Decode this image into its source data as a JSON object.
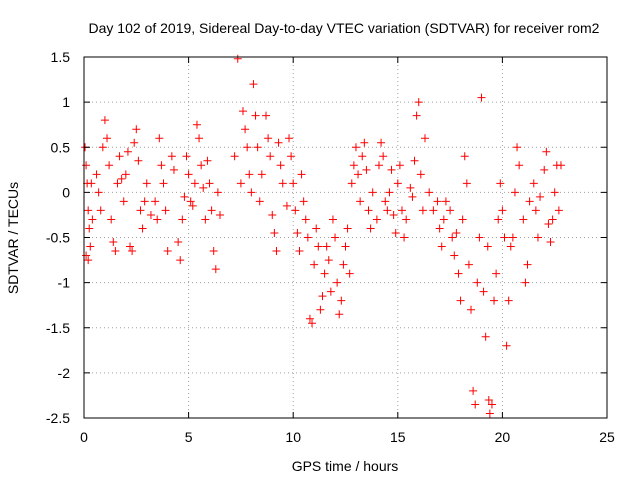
{
  "chart_data": {
    "type": "scatter",
    "title": "Day 102 of 2019, Sidereal Day-to-day VTEC variation (SDTVAR) for receiver rom2",
    "xlabel": "GPS time / hours",
    "ylabel": "SDTVAR / TECUs",
    "xlim": [
      0,
      25
    ],
    "ylim": [
      -2.5,
      1.5
    ],
    "xticks": [
      "0",
      "5",
      "10",
      "15",
      "20",
      "25"
    ],
    "yticks": [
      "1.5",
      "1",
      "0.5",
      "0",
      "-0.5",
      "-1",
      "-1.5",
      "-2",
      "-2.5"
    ],
    "marker": "+",
    "color": "#ff0000",
    "grid": true,
    "series": [
      {
        "name": "SDTVAR",
        "points": [
          [
            0.05,
            0.5
          ],
          [
            0.1,
            0.3
          ],
          [
            0.15,
            0.1
          ],
          [
            0.2,
            -0.2
          ],
          [
            0.25,
            -0.4
          ],
          [
            0.1,
            -0.7
          ],
          [
            0.2,
            -0.75
          ],
          [
            0.3,
            -0.6
          ],
          [
            0.35,
            0.1
          ],
          [
            0.4,
            -0.3
          ],
          [
            0.6,
            0.2
          ],
          [
            0.7,
            0.0
          ],
          [
            0.8,
            -0.2
          ],
          [
            0.9,
            0.5
          ],
          [
            1.0,
            0.8
          ],
          [
            1.1,
            0.6
          ],
          [
            1.2,
            0.3
          ],
          [
            1.3,
            -0.3
          ],
          [
            1.4,
            -0.55
          ],
          [
            1.5,
            -0.65
          ],
          [
            1.6,
            0.1
          ],
          [
            1.7,
            0.4
          ],
          [
            1.8,
            0.15
          ],
          [
            1.9,
            -0.1
          ],
          [
            2.0,
            0.2
          ],
          [
            2.1,
            0.45
          ],
          [
            2.2,
            -0.6
          ],
          [
            2.3,
            -0.65
          ],
          [
            2.4,
            0.55
          ],
          [
            2.5,
            0.7
          ],
          [
            2.6,
            0.35
          ],
          [
            2.7,
            -0.2
          ],
          [
            2.8,
            -0.4
          ],
          [
            2.9,
            -0.1
          ],
          [
            3.0,
            0.1
          ],
          [
            3.2,
            -0.25
          ],
          [
            3.4,
            -0.1
          ],
          [
            3.5,
            -0.3
          ],
          [
            3.6,
            0.6
          ],
          [
            3.7,
            0.3
          ],
          [
            3.8,
            0.1
          ],
          [
            3.9,
            -0.2
          ],
          [
            4.0,
            -0.65
          ],
          [
            4.2,
            0.4
          ],
          [
            4.3,
            0.25
          ],
          [
            4.5,
            -0.55
          ],
          [
            4.6,
            -0.75
          ],
          [
            4.7,
            -0.3
          ],
          [
            4.8,
            -0.05
          ],
          [
            4.9,
            0.4
          ],
          [
            5.0,
            0.2
          ],
          [
            5.1,
            -0.1
          ],
          [
            5.2,
            -0.15
          ],
          [
            5.3,
            0.1
          ],
          [
            5.4,
            0.75
          ],
          [
            5.5,
            0.6
          ],
          [
            5.6,
            0.3
          ],
          [
            5.7,
            0.05
          ],
          [
            5.8,
            -0.3
          ],
          [
            5.9,
            0.35
          ],
          [
            6.0,
            0.1
          ],
          [
            6.1,
            -0.2
          ],
          [
            6.2,
            -0.65
          ],
          [
            6.3,
            -0.85
          ],
          [
            6.4,
            0.0
          ],
          [
            6.5,
            -0.25
          ],
          [
            7.2,
            0.4
          ],
          [
            7.35,
            1.48
          ],
          [
            7.5,
            0.1
          ],
          [
            7.6,
            0.9
          ],
          [
            7.7,
            0.7
          ],
          [
            7.8,
            0.5
          ],
          [
            7.9,
            0.2
          ],
          [
            8.0,
            0.0
          ],
          [
            8.1,
            1.2
          ],
          [
            8.2,
            0.85
          ],
          [
            8.3,
            0.5
          ],
          [
            8.4,
            -0.1
          ],
          [
            8.5,
            0.2
          ],
          [
            8.7,
            0.85
          ],
          [
            8.8,
            0.6
          ],
          [
            8.9,
            0.4
          ],
          [
            9.0,
            -0.25
          ],
          [
            9.1,
            -0.45
          ],
          [
            9.2,
            -0.65
          ],
          [
            9.3,
            0.55
          ],
          [
            9.4,
            0.3
          ],
          [
            9.5,
            0.1
          ],
          [
            9.7,
            -0.15
          ],
          [
            9.8,
            0.6
          ],
          [
            9.9,
            0.4
          ],
          [
            10.0,
            0.1
          ],
          [
            10.1,
            -0.2
          ],
          [
            10.2,
            -0.45
          ],
          [
            10.3,
            -0.65
          ],
          [
            10.4,
            0.2
          ],
          [
            10.5,
            -0.1
          ],
          [
            10.6,
            -0.3
          ],
          [
            10.7,
            -0.5
          ],
          [
            10.8,
            -1.4
          ],
          [
            10.9,
            -1.45
          ],
          [
            11.0,
            -0.8
          ],
          [
            11.1,
            -0.4
          ],
          [
            11.2,
            -0.6
          ],
          [
            11.3,
            -1.3
          ],
          [
            11.4,
            -1.15
          ],
          [
            11.5,
            -0.9
          ],
          [
            11.6,
            -0.6
          ],
          [
            11.7,
            -0.75
          ],
          [
            11.8,
            -1.1
          ],
          [
            11.9,
            -0.3
          ],
          [
            12.0,
            -0.5
          ],
          [
            12.1,
            -1.0
          ],
          [
            12.2,
            -1.35
          ],
          [
            12.3,
            -1.2
          ],
          [
            12.4,
            -0.8
          ],
          [
            12.5,
            -0.6
          ],
          [
            12.6,
            -0.4
          ],
          [
            12.7,
            -0.9
          ],
          [
            12.8,
            0.1
          ],
          [
            12.9,
            0.3
          ],
          [
            13.0,
            0.5
          ],
          [
            13.1,
            0.2
          ],
          [
            13.2,
            -0.1
          ],
          [
            13.3,
            0.4
          ],
          [
            13.4,
            0.55
          ],
          [
            13.5,
            0.25
          ],
          [
            13.6,
            -0.2
          ],
          [
            13.7,
            -0.4
          ],
          [
            13.8,
            0.0
          ],
          [
            14.0,
            -0.3
          ],
          [
            14.1,
            0.3
          ],
          [
            14.2,
            0.55
          ],
          [
            14.3,
            0.4
          ],
          [
            14.4,
            -0.1
          ],
          [
            14.5,
            -0.2
          ],
          [
            14.6,
            0.0
          ],
          [
            14.7,
            0.25
          ],
          [
            14.8,
            -0.25
          ],
          [
            14.9,
            -0.45
          ],
          [
            15.0,
            0.1
          ],
          [
            15.1,
            0.3
          ],
          [
            15.2,
            -0.2
          ],
          [
            15.3,
            -0.5
          ],
          [
            15.4,
            -0.3
          ],
          [
            15.6,
            0.05
          ],
          [
            15.7,
            -0.05
          ],
          [
            15.8,
            0.35
          ],
          [
            15.9,
            0.85
          ],
          [
            16.0,
            1.0
          ],
          [
            16.1,
            0.2
          ],
          [
            16.2,
            -0.2
          ],
          [
            16.3,
            0.6
          ],
          [
            16.5,
            0.0
          ],
          [
            16.7,
            -0.2
          ],
          [
            16.9,
            -0.1
          ],
          [
            17.0,
            -0.4
          ],
          [
            17.1,
            -0.6
          ],
          [
            17.2,
            -0.3
          ],
          [
            17.3,
            -0.1
          ],
          [
            17.5,
            -0.2
          ],
          [
            17.6,
            -0.5
          ],
          [
            17.7,
            -0.7
          ],
          [
            17.8,
            -0.45
          ],
          [
            17.9,
            -0.9
          ],
          [
            18.0,
            -1.2
          ],
          [
            18.1,
            -0.3
          ],
          [
            18.2,
            0.4
          ],
          [
            18.3,
            0.1
          ],
          [
            18.4,
            -0.8
          ],
          [
            18.5,
            -1.3
          ],
          [
            18.6,
            -2.2
          ],
          [
            18.7,
            -2.35
          ],
          [
            18.8,
            -1.0
          ],
          [
            18.9,
            -0.5
          ],
          [
            19.0,
            1.05
          ],
          [
            19.1,
            -1.1
          ],
          [
            19.2,
            -1.6
          ],
          [
            19.3,
            -0.6
          ],
          [
            19.35,
            -2.3
          ],
          [
            19.4,
            -2.45
          ],
          [
            19.5,
            -2.35
          ],
          [
            19.6,
            -1.2
          ],
          [
            19.7,
            -0.9
          ],
          [
            19.8,
            -0.3
          ],
          [
            19.9,
            0.1
          ],
          [
            20.0,
            -0.2
          ],
          [
            20.1,
            -0.5
          ],
          [
            20.2,
            -1.7
          ],
          [
            20.3,
            -1.2
          ],
          [
            20.4,
            -0.6
          ],
          [
            20.5,
            -0.5
          ],
          [
            20.6,
            0.0
          ],
          [
            20.7,
            0.5
          ],
          [
            20.8,
            0.3
          ],
          [
            21.0,
            -0.3
          ],
          [
            21.1,
            -1.0
          ],
          [
            21.2,
            -0.8
          ],
          [
            21.3,
            -0.1
          ],
          [
            21.5,
            0.1
          ],
          [
            21.6,
            -0.2
          ],
          [
            21.7,
            -0.5
          ],
          [
            21.8,
            -0.05
          ],
          [
            22.0,
            0.25
          ],
          [
            22.1,
            0.45
          ],
          [
            22.2,
            -0.35
          ],
          [
            22.3,
            -0.55
          ],
          [
            22.4,
            -0.3
          ],
          [
            22.5,
            0.0
          ],
          [
            22.6,
            0.3
          ],
          [
            22.7,
            -0.2
          ],
          [
            22.8,
            0.3
          ]
        ]
      }
    ]
  }
}
